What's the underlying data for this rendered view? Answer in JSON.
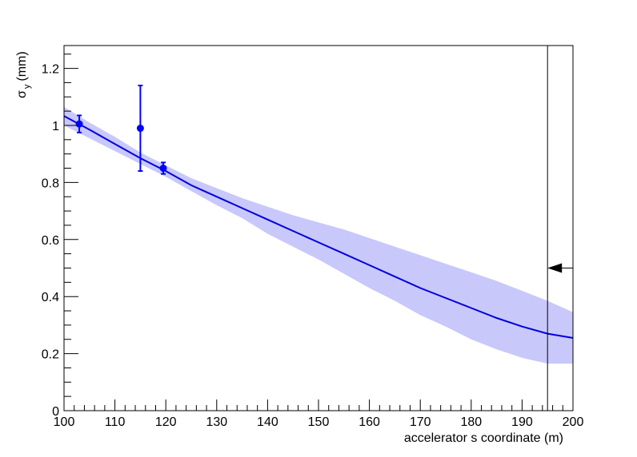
{
  "chart_data": {
    "type": "scatter",
    "title": "",
    "xlabel": "accelerator s coordinate (m)",
    "ylabel": {
      "main": "σ",
      "sub": "y",
      "unit": "(mm)"
    },
    "xlim": [
      100,
      200
    ],
    "ylim": [
      0,
      1.28
    ],
    "x_ticks": [
      100,
      110,
      120,
      130,
      140,
      150,
      160,
      170,
      180,
      190,
      200
    ],
    "y_ticks": [
      0,
      0.2,
      0.4,
      0.6,
      0.8,
      1,
      1.2
    ],
    "x_tick_labels": [
      "100",
      "110",
      "120",
      "130",
      "140",
      "150",
      "160",
      "170",
      "180",
      "190",
      "200"
    ],
    "y_tick_labels": [
      "0",
      "0.2",
      "0.4",
      "0.6",
      "0.8",
      "1",
      "1.2"
    ],
    "grid": false,
    "series": [
      {
        "kind": "points",
        "color": "#0000ff",
        "points": [
          {
            "x": 103,
            "y": 1.005,
            "err": 0.03
          },
          {
            "x": 115,
            "y": 0.99,
            "err": 0.15
          },
          {
            "x": 119.5,
            "y": 0.85,
            "err": 0.02
          }
        ]
      },
      {
        "kind": "fit",
        "color": "#0000dd",
        "band_color": "#c8c8fa",
        "x": [
          100,
          105,
          110,
          115,
          120,
          125,
          130,
          135,
          140,
          145,
          150,
          155,
          160,
          165,
          170,
          175,
          180,
          185,
          190,
          195,
          200
        ],
        "y": [
          1.033,
          0.985,
          0.935,
          0.885,
          0.84,
          0.79,
          0.75,
          0.71,
          0.67,
          0.63,
          0.59,
          0.55,
          0.51,
          0.47,
          0.43,
          0.395,
          0.36,
          0.325,
          0.295,
          0.27,
          0.255
        ],
        "band_low": [
          1.0,
          0.955,
          0.91,
          0.865,
          0.82,
          0.77,
          0.72,
          0.675,
          0.62,
          0.575,
          0.53,
          0.48,
          0.43,
          0.385,
          0.335,
          0.295,
          0.25,
          0.215,
          0.185,
          0.165,
          0.165
        ],
        "band_high": [
          1.065,
          1.01,
          0.96,
          0.905,
          0.86,
          0.815,
          0.78,
          0.745,
          0.715,
          0.685,
          0.66,
          0.635,
          0.605,
          0.575,
          0.545,
          0.515,
          0.485,
          0.455,
          0.42,
          0.385,
          0.345
        ]
      }
    ],
    "markers": {
      "vertical_line_x": 195,
      "arrow_y": 0.5,
      "arrow_direction": "left"
    }
  }
}
